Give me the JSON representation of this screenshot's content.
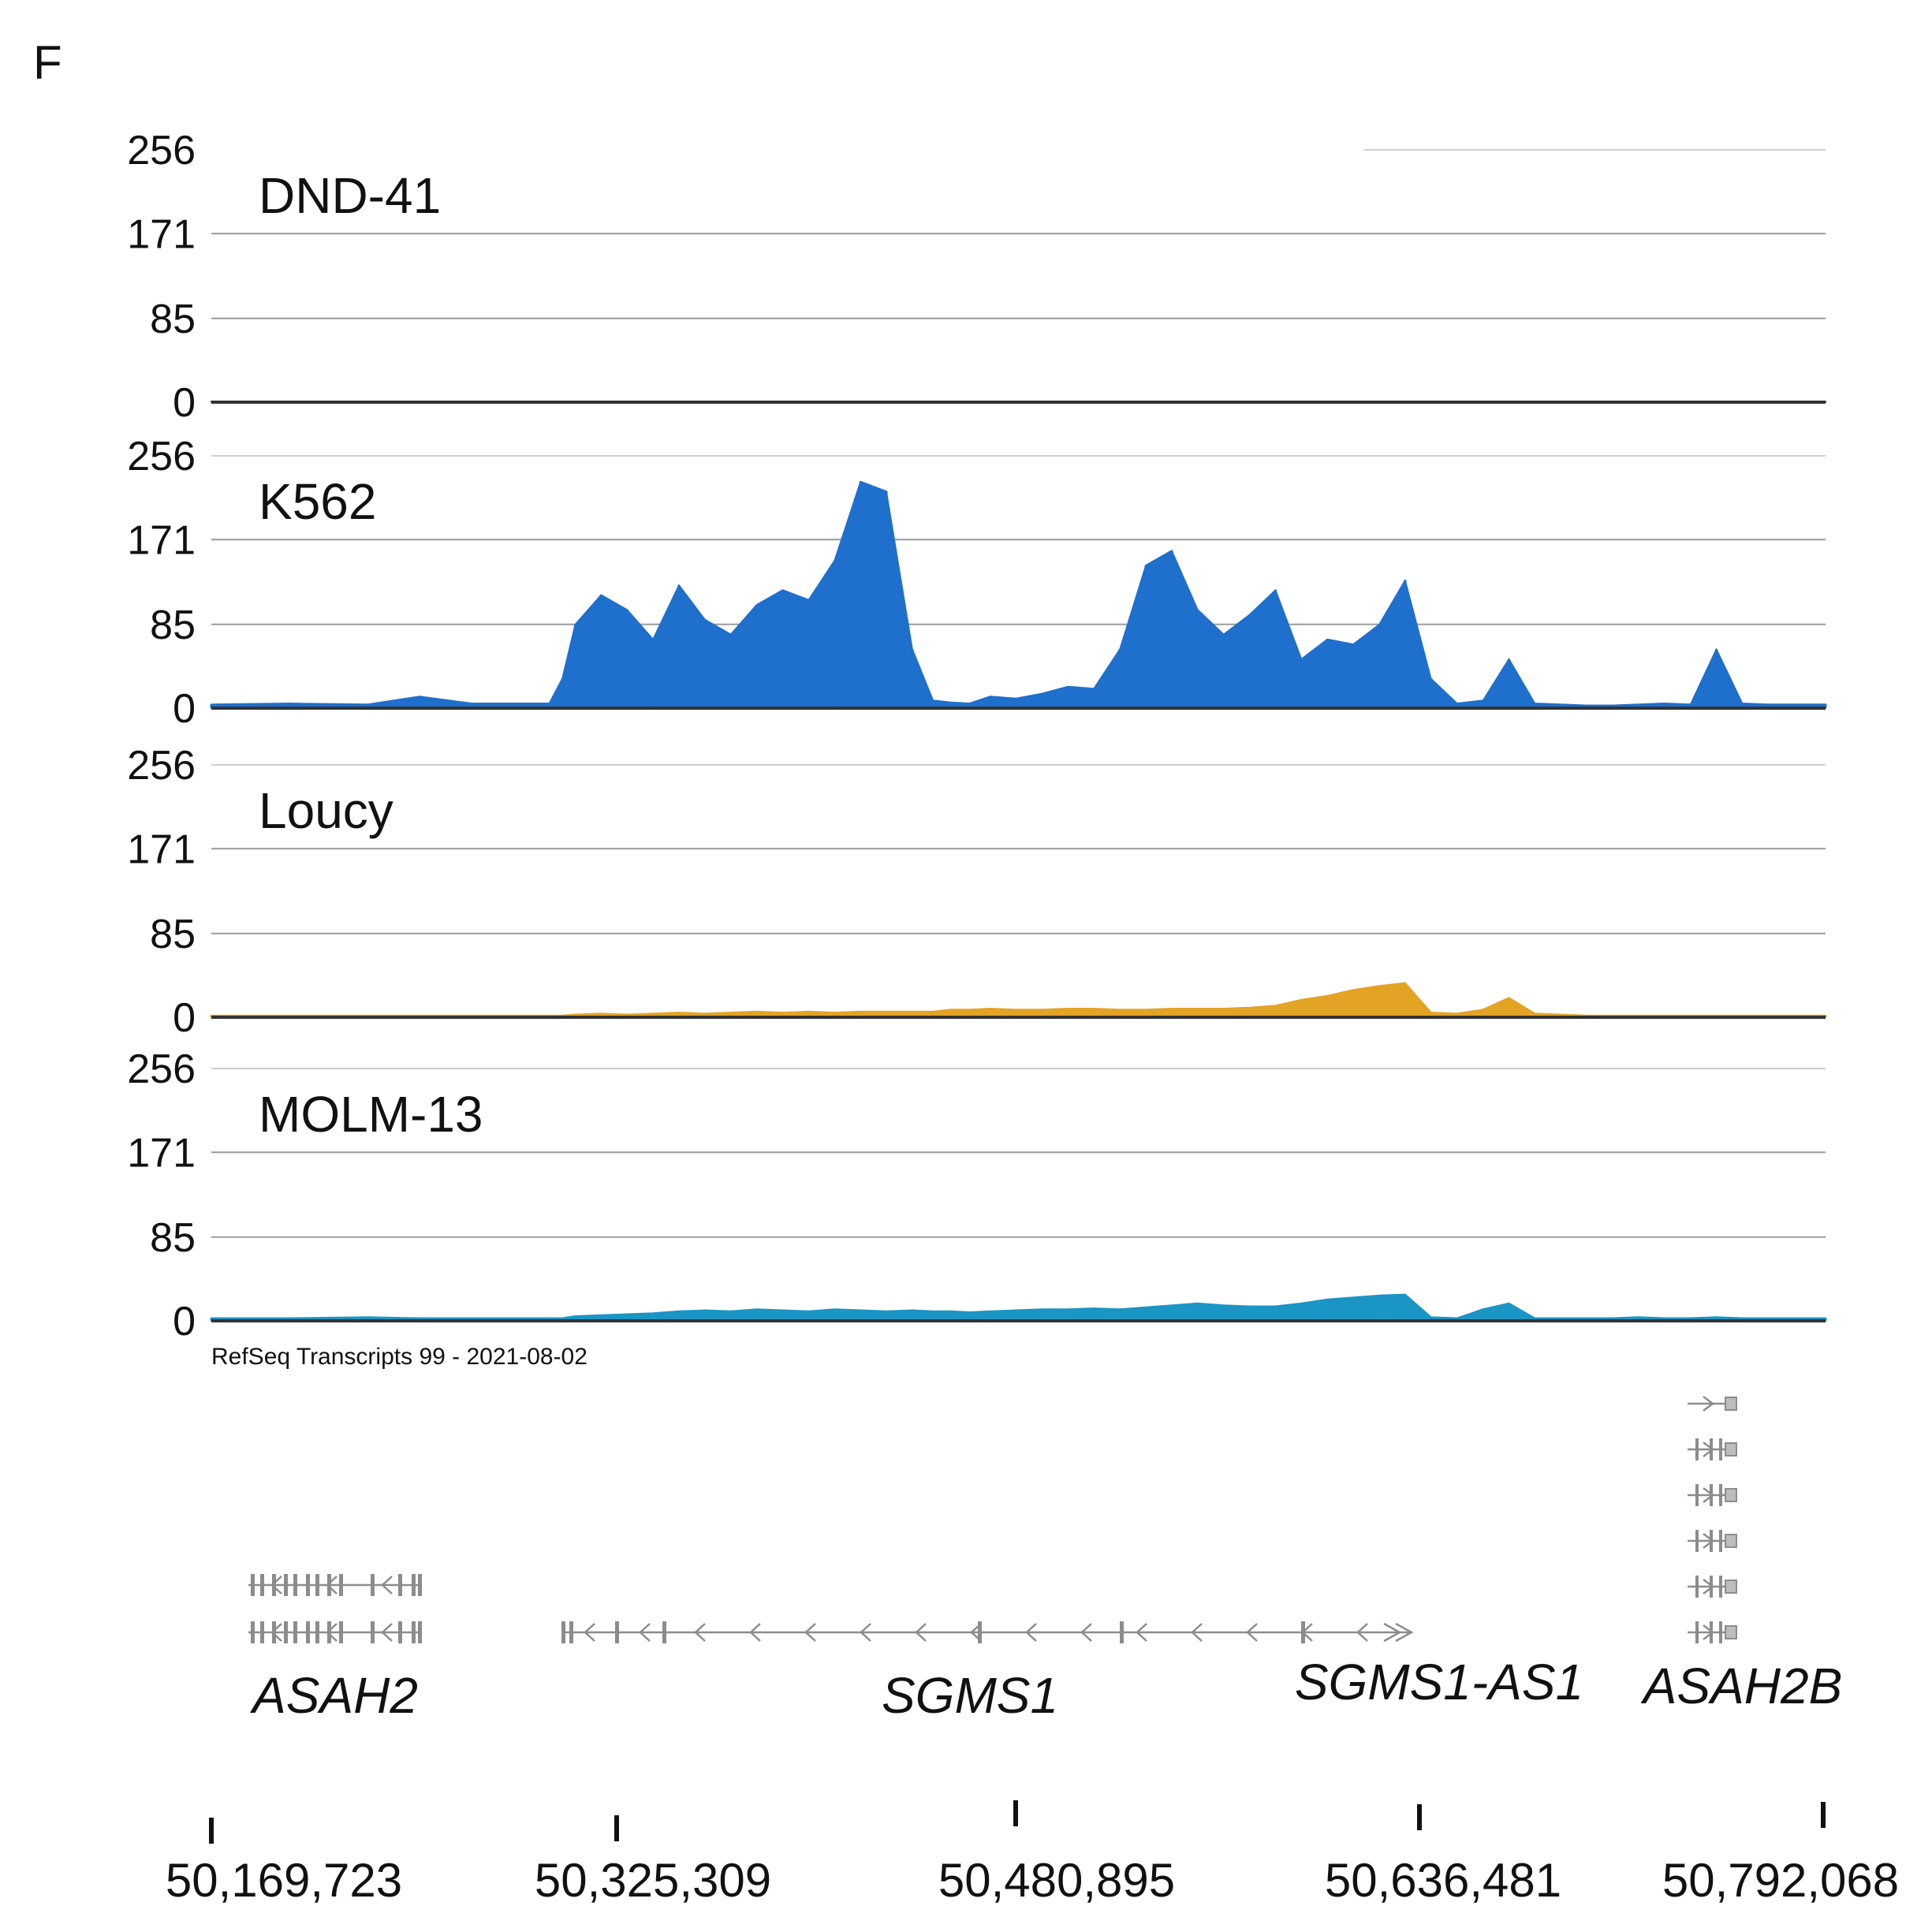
{
  "panel_label": "F",
  "annotation_track": "RefSeq Transcripts 99 - 2021-08-02",
  "chart_data": {
    "type": "area",
    "title": "",
    "xlabel": "",
    "ylabel": "",
    "ylim": [
      0,
      256
    ],
    "yticks": [
      "256",
      "171",
      "85",
      "0"
    ],
    "xlim": [
      50169723,
      50792068
    ],
    "xticks": [
      "50,169,723",
      "50,325,309",
      "50,480,895",
      "50,636,481",
      "50,792,068"
    ],
    "x": [
      50169723,
      50200000,
      50230000,
      50250000,
      50270000,
      50300000,
      50305000,
      50310000,
      50320000,
      50330000,
      50340000,
      50350000,
      50360000,
      50370000,
      50380000,
      50390000,
      50400000,
      50410000,
      50420000,
      50430000,
      50440000,
      50448000,
      50455000,
      50462000,
      50470000,
      50480000,
      50490000,
      50500000,
      50510000,
      50520000,
      50530000,
      50540000,
      50550000,
      50560000,
      50570000,
      50580000,
      50590000,
      50600000,
      50610000,
      50620000,
      50630000,
      50640000,
      50650000,
      50660000,
      50670000,
      50680000,
      50690000,
      50700000,
      50710000,
      50720000,
      50730000,
      50740000,
      50750000,
      50760000,
      50770000,
      50792068
    ],
    "series": [
      {
        "name": "DND-41",
        "color": "#2e6b3a",
        "values": [
          1,
          1,
          1,
          1,
          1,
          1,
          1,
          1,
          1,
          1,
          1,
          1,
          1,
          1,
          1,
          1,
          1,
          1,
          1,
          1,
          1,
          1,
          1,
          1,
          1,
          1,
          1,
          1,
          1,
          1,
          1,
          1,
          1,
          1,
          1,
          1,
          1,
          1,
          1,
          1,
          1,
          1,
          1,
          1,
          1,
          1,
          1,
          1,
          1,
          1,
          1,
          1,
          1,
          1,
          1,
          1
        ]
      },
      {
        "name": "K562",
        "color": "#1f6fcc",
        "values": [
          4,
          5,
          4,
          12,
          5,
          5,
          30,
          85,
          115,
          100,
          70,
          125,
          90,
          75,
          105,
          120,
          110,
          150,
          230,
          220,
          60,
          8,
          6,
          5,
          12,
          10,
          15,
          22,
          20,
          60,
          145,
          160,
          100,
          75,
          95,
          120,
          50,
          70,
          65,
          85,
          130,
          30,
          5,
          8,
          50,
          5,
          4,
          3,
          3,
          4,
          5,
          4,
          60,
          5,
          4,
          4
        ]
      },
      {
        "name": "Loucy",
        "color": "#e3a325",
        "values": [
          2,
          2,
          2,
          2,
          2,
          2,
          2,
          3,
          4,
          3,
          4,
          5,
          4,
          5,
          6,
          5,
          6,
          5,
          6,
          6,
          6,
          6,
          8,
          8,
          9,
          8,
          8,
          9,
          9,
          8,
          8,
          9,
          9,
          9,
          10,
          12,
          18,
          22,
          28,
          32,
          35,
          5,
          4,
          8,
          20,
          4,
          3,
          2,
          2,
          2,
          2,
          2,
          2,
          2,
          2,
          2
        ]
      },
      {
        "name": "MOLM-13",
        "color": "#1a95c4",
        "values": [
          3,
          3,
          4,
          3,
          3,
          3,
          3,
          5,
          6,
          7,
          8,
          10,
          11,
          10,
          12,
          11,
          10,
          12,
          11,
          10,
          11,
          10,
          10,
          9,
          10,
          11,
          12,
          12,
          13,
          12,
          14,
          16,
          18,
          16,
          15,
          15,
          18,
          22,
          24,
          26,
          27,
          4,
          3,
          12,
          18,
          3,
          3,
          3,
          3,
          4,
          3,
          3,
          4,
          3,
          3,
          3
        ]
      }
    ]
  },
  "genes": [
    {
      "label": "ASAH2",
      "strand": "-"
    },
    {
      "label": "SGMS1",
      "strand": "-"
    },
    {
      "label": "SGMS1-AS1",
      "strand": "+"
    },
    {
      "label": "ASAH2B",
      "strand": "+"
    }
  ]
}
